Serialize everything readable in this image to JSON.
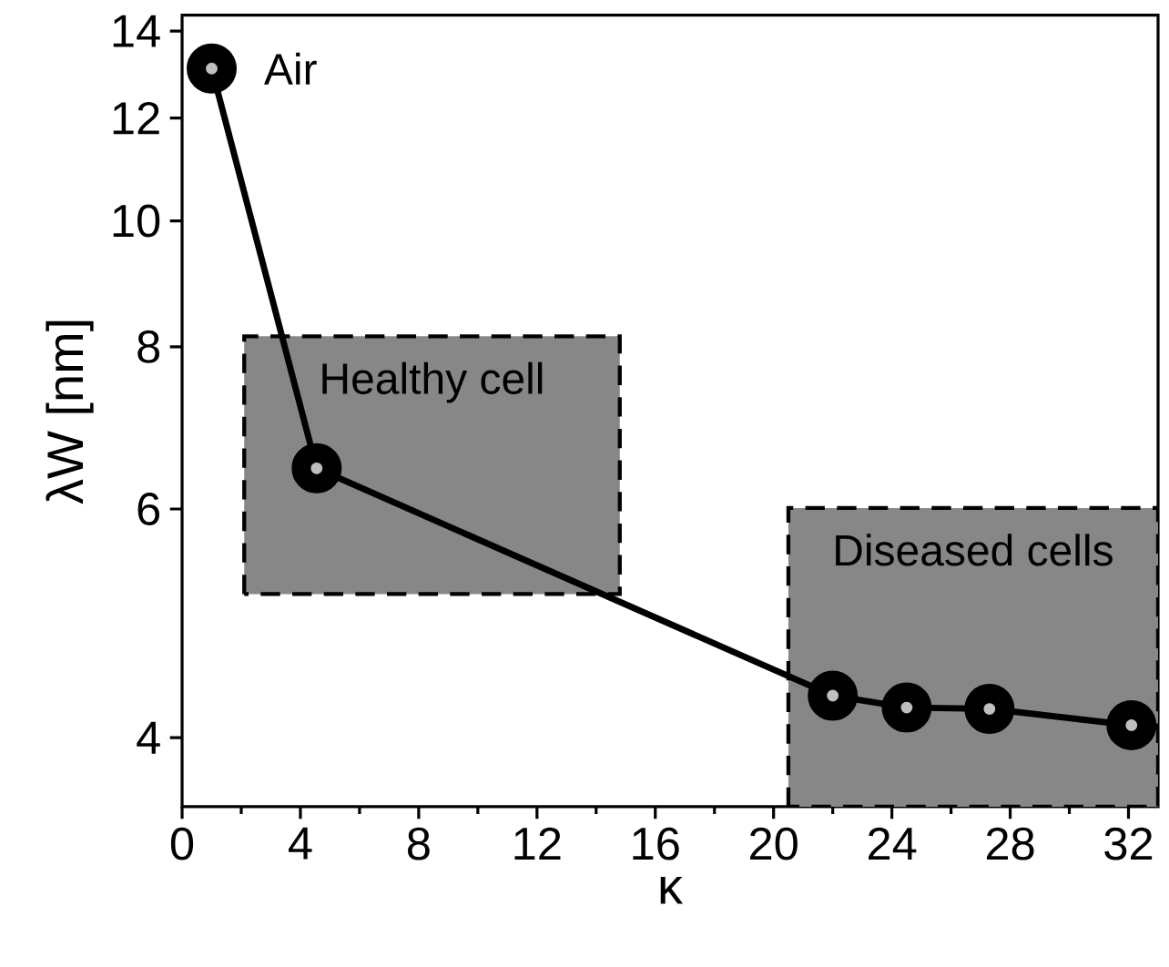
{
  "chart_data": {
    "type": "line",
    "xlabel": "κ",
    "ylabel": "λW [nm]",
    "x": [
      1.0,
      4.55,
      22.0,
      24.5,
      27.3,
      32.1
    ],
    "series": [
      {
        "color": "#000000",
        "values": [
          13.1,
          6.45,
          4.31,
          4.22,
          4.21,
          4.09
        ]
      }
    ],
    "xlim": [
      0,
      33
    ],
    "xticks": [
      0,
      4,
      8,
      12,
      16,
      20,
      24,
      28,
      32
    ],
    "ylim": [
      3.54,
      14.4
    ],
    "yticks": [
      4,
      6,
      8,
      10,
      12,
      14
    ],
    "log": "y",
    "marker": "circle",
    "line_style": "solid",
    "grid": false,
    "legend": false,
    "bands": [
      {
        "axis": "x",
        "from": 2.1,
        "to": 14.8,
        "label": "Healthy cell",
        "color": "#878787"
      },
      {
        "axis": "x",
        "from": 20.5,
        "to": 33,
        "label": "Diseased cells",
        "color": "#878787"
      }
    ],
    "annotations": [
      {
        "text": "Air",
        "x": 1.0,
        "y": 13.1
      }
    ]
  }
}
